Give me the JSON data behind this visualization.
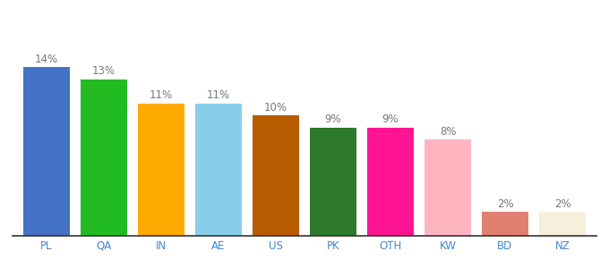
{
  "categories": [
    "PL",
    "QA",
    "IN",
    "AE",
    "US",
    "PK",
    "OTH",
    "KW",
    "BD",
    "NZ"
  ],
  "values": [
    14,
    13,
    11,
    11,
    10,
    9,
    9,
    8,
    2,
    2
  ],
  "bar_colors": [
    "#4472c4",
    "#22bb22",
    "#ffaa00",
    "#87ceeb",
    "#b85c00",
    "#2d7a2d",
    "#ff1493",
    "#ffb6c1",
    "#e08070",
    "#f5f0dc"
  ],
  "ylim": [
    0,
    18
  ],
  "background_color": "#ffffff",
  "label_fontsize": 8.5,
  "tick_fontsize": 8.5,
  "bar_width": 0.82
}
